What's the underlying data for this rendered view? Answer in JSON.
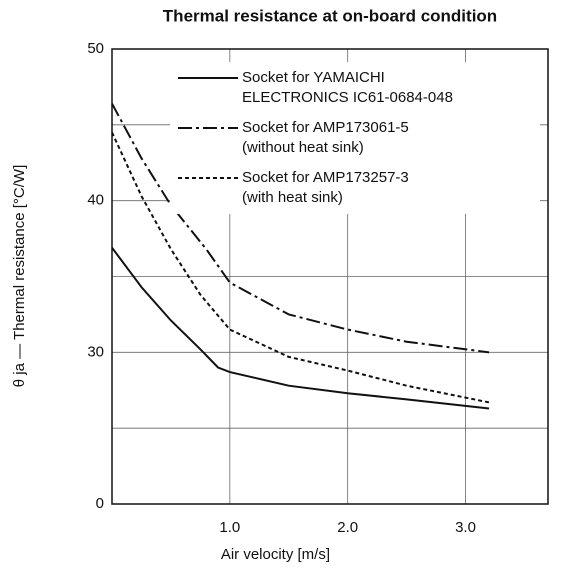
{
  "chart_data": {
    "type": "line",
    "title": "Thermal resistance at on-board condition",
    "x_label": "Air velocity [m/s]",
    "y_label": "θ ja — Thermal resistance [°C/W]",
    "y_bottom_label": "0",
    "xlim": [
      0,
      3.7
    ],
    "ylim": [
      20,
      50
    ],
    "xticks": [
      {
        "value": 1,
        "label": "1.0"
      },
      {
        "value": 2,
        "label": "2.0"
      },
      {
        "value": 3,
        "label": "3.0"
      }
    ],
    "yticks": [
      30,
      40,
      50
    ],
    "ygrid": [
      25,
      30,
      35,
      40,
      45
    ],
    "grid": true,
    "legend": "upper right",
    "series": [
      {
        "name": "Socket for YAMAICHI\nELECTRONICS IC61-0684-048",
        "color": "#111111",
        "dash": "solid",
        "x": [
          0,
          0.25,
          0.5,
          0.75,
          0.9,
          1.0,
          1.5,
          2.0,
          2.5,
          3.2
        ],
        "values": [
          36.9,
          34.3,
          32.1,
          30.2,
          29.0,
          28.7,
          27.8,
          27.3,
          26.9,
          26.3
        ]
      },
      {
        "name": "Socket for AMP173061-5\n(without heat sink)",
        "color": "#111111",
        "dash": "dashdot",
        "x": [
          0,
          0.25,
          0.5,
          0.8,
          1.0,
          1.5,
          2.0,
          2.5,
          3.2
        ],
        "values": [
          46.4,
          42.8,
          39.7,
          36.8,
          34.6,
          32.5,
          31.5,
          30.7,
          30.0
        ]
      },
      {
        "name": "Socket for AMP173257-3\n(with heat sink)",
        "color": "#111111",
        "dash": "dotted",
        "x": [
          0,
          0.25,
          0.5,
          0.75,
          1.0,
          1.5,
          2.0,
          2.5,
          3.2
        ],
        "values": [
          44.5,
          40.3,
          36.8,
          33.8,
          31.5,
          29.7,
          28.8,
          27.8,
          26.7
        ]
      }
    ]
  }
}
